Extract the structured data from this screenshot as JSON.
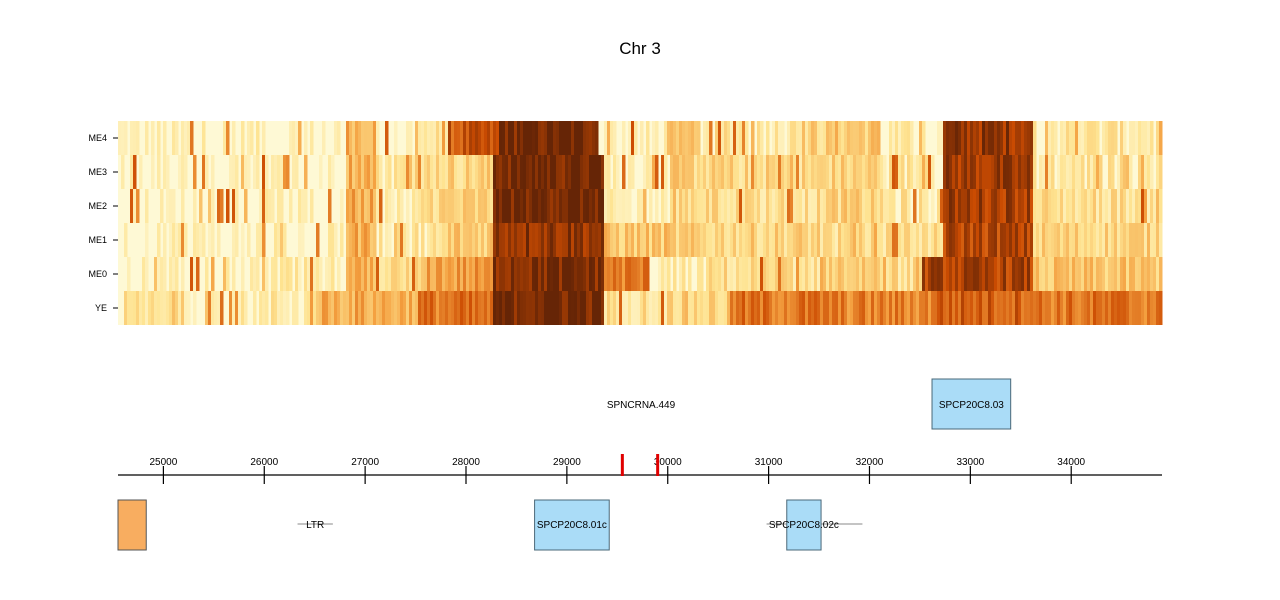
{
  "chart_data": {
    "type": "heatmap",
    "title": "Chr 3",
    "rows": [
      "ME4",
      "ME3",
      "ME2",
      "ME1",
      "ME0",
      "YE"
    ],
    "x_range": [
      24550,
      34900
    ],
    "x_ticks": [
      "25000",
      "26000",
      "27000",
      "28000",
      "29000",
      "30000",
      "31000",
      "32000",
      "33000",
      "34000"
    ],
    "colors": {
      "low": "#fefee6",
      "mid": "#f4a040",
      "high": "#6b2005",
      "marker": "#e00000",
      "gene_fill": "#aadcf7",
      "gene_stroke": "#4a6878",
      "repeat_fill": "#f8ad60",
      "axis": "#000000"
    },
    "intensity_segments": {
      "ME4": [
        [
          24550,
          25200,
          0.1
        ],
        [
          25200,
          26000,
          0.12
        ],
        [
          26000,
          26800,
          0.1
        ],
        [
          26800,
          27100,
          0.45
        ],
        [
          27100,
          27500,
          0.1
        ],
        [
          27500,
          27800,
          0.2
        ],
        [
          27800,
          28300,
          0.72
        ],
        [
          28300,
          28900,
          0.98
        ],
        [
          28900,
          29300,
          0.98
        ],
        [
          29300,
          30000,
          0.12
        ],
        [
          30000,
          30300,
          0.3
        ],
        [
          30300,
          31200,
          0.2
        ],
        [
          31200,
          31600,
          0.3
        ],
        [
          31600,
          32100,
          0.35
        ],
        [
          32100,
          32700,
          0.15
        ],
        [
          32700,
          33600,
          0.88
        ],
        [
          33600,
          34900,
          0.2
        ]
      ],
      "ME3": [
        [
          24550,
          25200,
          0.08
        ],
        [
          25200,
          26000,
          0.08
        ],
        [
          26000,
          26800,
          0.1
        ],
        [
          26800,
          27100,
          0.45
        ],
        [
          27100,
          27600,
          0.2
        ],
        [
          27600,
          28250,
          0.3
        ],
        [
          28250,
          29350,
          0.98
        ],
        [
          29350,
          30000,
          0.15
        ],
        [
          30000,
          30400,
          0.3
        ],
        [
          30400,
          31500,
          0.28
        ],
        [
          31500,
          32100,
          0.3
        ],
        [
          32100,
          32700,
          0.2
        ],
        [
          32700,
          33600,
          0.85
        ],
        [
          33600,
          34900,
          0.2
        ]
      ],
      "ME2": [
        [
          24550,
          25200,
          0.08
        ],
        [
          25200,
          26000,
          0.1
        ],
        [
          26000,
          26800,
          0.1
        ],
        [
          26800,
          27100,
          0.45
        ],
        [
          27100,
          27600,
          0.2
        ],
        [
          27600,
          28250,
          0.3
        ],
        [
          28250,
          29350,
          0.99
        ],
        [
          29350,
          30000,
          0.12
        ],
        [
          30000,
          30400,
          0.3
        ],
        [
          30400,
          31500,
          0.25
        ],
        [
          31500,
          32100,
          0.3
        ],
        [
          32100,
          32700,
          0.2
        ],
        [
          32700,
          33600,
          0.85
        ],
        [
          33600,
          34900,
          0.25
        ]
      ],
      "ME1": [
        [
          24550,
          25200,
          0.1
        ],
        [
          25200,
          26000,
          0.1
        ],
        [
          26000,
          26800,
          0.12
        ],
        [
          26800,
          27100,
          0.45
        ],
        [
          27100,
          27800,
          0.2
        ],
        [
          27800,
          28250,
          0.35
        ],
        [
          28250,
          29350,
          0.9
        ],
        [
          29350,
          30000,
          0.35
        ],
        [
          30000,
          30400,
          0.3
        ],
        [
          30400,
          31500,
          0.3
        ],
        [
          31500,
          32100,
          0.25
        ],
        [
          32100,
          32700,
          0.25
        ],
        [
          32700,
          33600,
          0.8
        ],
        [
          33600,
          34900,
          0.3
        ]
      ],
      "ME0": [
        [
          24550,
          25200,
          0.1
        ],
        [
          25200,
          26000,
          0.1
        ],
        [
          26000,
          26800,
          0.15
        ],
        [
          26800,
          27100,
          0.4
        ],
        [
          27100,
          27600,
          0.25
        ],
        [
          27600,
          28250,
          0.5
        ],
        [
          28250,
          29350,
          0.95
        ],
        [
          29350,
          29800,
          0.6
        ],
        [
          29800,
          30400,
          0.15
        ],
        [
          30400,
          31500,
          0.25
        ],
        [
          31500,
          32100,
          0.35
        ],
        [
          32100,
          32500,
          0.25
        ],
        [
          32500,
          33600,
          0.82
        ],
        [
          33600,
          34900,
          0.35
        ]
      ],
      "YE": [
        [
          24550,
          25200,
          0.2
        ],
        [
          25200,
          26000,
          0.15
        ],
        [
          26000,
          26500,
          0.18
        ],
        [
          26500,
          27500,
          0.45
        ],
        [
          27500,
          28250,
          0.62
        ],
        [
          28250,
          29350,
          0.98
        ],
        [
          29350,
          30000,
          0.25
        ],
        [
          30000,
          30600,
          0.3
        ],
        [
          30600,
          31600,
          0.62
        ],
        [
          31600,
          32600,
          0.58
        ],
        [
          32600,
          33600,
          0.7
        ],
        [
          33600,
          34900,
          0.62
        ]
      ]
    },
    "markers": [
      29550,
      29900
    ],
    "features_top": [
      {
        "label": "SPNCRNA.449",
        "type": "text"
      },
      {
        "label": "SPCP20C8.03",
        "type": "gene",
        "start": 32620,
        "end": 33400
      }
    ],
    "features_bottom": [
      {
        "label": "",
        "type": "repeat",
        "start": 24550,
        "end": 24830
      },
      {
        "label": "LTR",
        "type": "line",
        "start": 26330,
        "end": 26680
      },
      {
        "label": "SPCP20C8.01c",
        "type": "gene",
        "start": 28680,
        "end": 29420
      },
      {
        "label": "SPCP20C8.02c",
        "type": "gene",
        "start": 31180,
        "end": 31520,
        "line_start": 30980,
        "line_end": 31930
      }
    ]
  }
}
